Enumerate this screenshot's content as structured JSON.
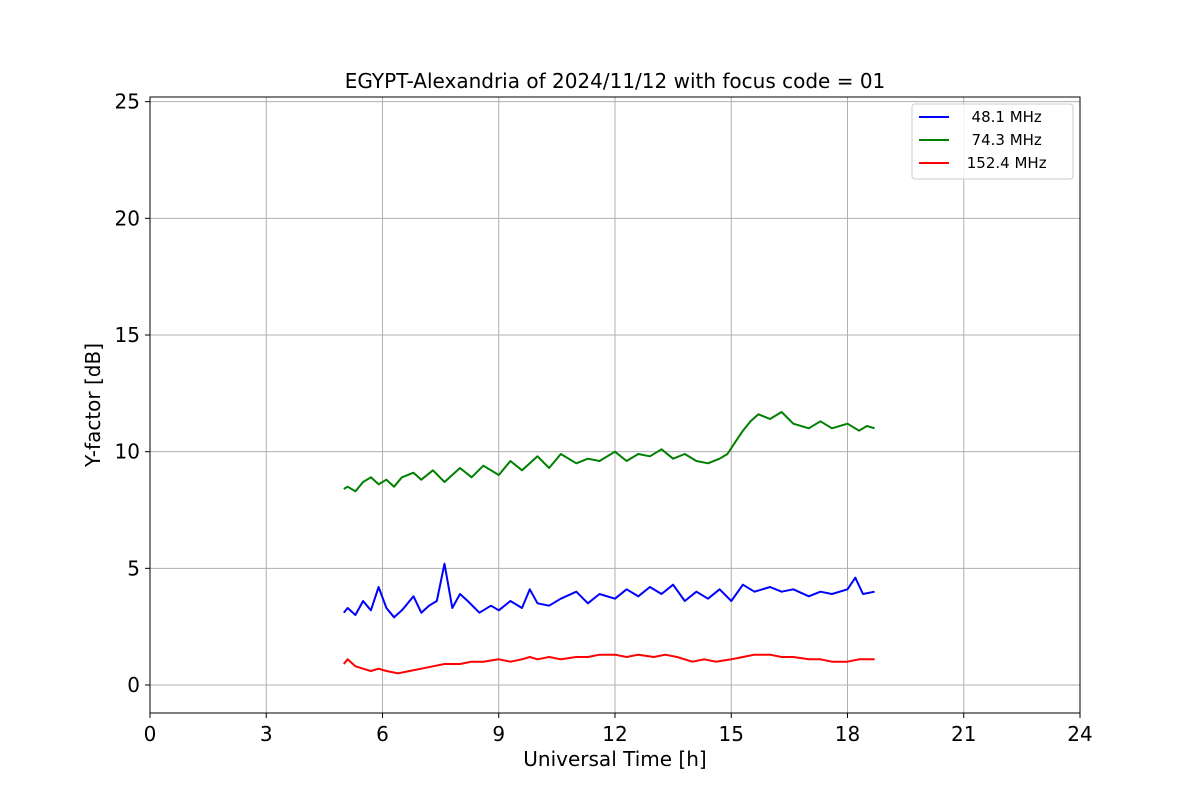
{
  "chart_data": {
    "type": "line",
    "title": "EGYPT-Alexandria of 2024/11/12 with focus code = 01",
    "xlabel": "Universal Time [h]",
    "ylabel": "Y-factor [dB]",
    "xlim": [
      0,
      24
    ],
    "ylim": [
      -1.2,
      25.2
    ],
    "xticks": [
      0,
      3,
      6,
      9,
      12,
      15,
      18,
      21,
      24
    ],
    "yticks": [
      0,
      5,
      10,
      15,
      20,
      25
    ],
    "grid": true,
    "legend_position": "top-right",
    "series": [
      {
        "name": "  48.1 MHz",
        "color": "#0000ff",
        "x": [
          5.0,
          5.1,
          5.3,
          5.5,
          5.7,
          5.9,
          6.1,
          6.3,
          6.5,
          6.8,
          7.0,
          7.2,
          7.4,
          7.6,
          7.8,
          8.0,
          8.2,
          8.5,
          8.8,
          9.0,
          9.3,
          9.6,
          9.8,
          10.0,
          10.3,
          10.6,
          11.0,
          11.3,
          11.6,
          12.0,
          12.3,
          12.6,
          12.9,
          13.2,
          13.5,
          13.8,
          14.1,
          14.4,
          14.7,
          15.0,
          15.3,
          15.6,
          16.0,
          16.3,
          16.6,
          17.0,
          17.3,
          17.6,
          18.0,
          18.2,
          18.4,
          18.7
        ],
        "y": [
          3.1,
          3.3,
          3.0,
          3.6,
          3.2,
          4.2,
          3.3,
          2.9,
          3.2,
          3.8,
          3.1,
          3.4,
          3.6,
          5.2,
          3.3,
          3.9,
          3.6,
          3.1,
          3.4,
          3.2,
          3.6,
          3.3,
          4.1,
          3.5,
          3.4,
          3.7,
          4.0,
          3.5,
          3.9,
          3.7,
          4.1,
          3.8,
          4.2,
          3.9,
          4.3,
          3.6,
          4.0,
          3.7,
          4.1,
          3.6,
          4.3,
          4.0,
          4.2,
          4.0,
          4.1,
          3.8,
          4.0,
          3.9,
          4.1,
          4.6,
          3.9,
          4.0
        ]
      },
      {
        "name": "  74.3 MHz",
        "color": "#008000",
        "x": [
          5.0,
          5.1,
          5.3,
          5.5,
          5.7,
          5.9,
          6.1,
          6.3,
          6.5,
          6.8,
          7.0,
          7.3,
          7.6,
          8.0,
          8.3,
          8.6,
          9.0,
          9.3,
          9.6,
          9.8,
          10.0,
          10.3,
          10.6,
          11.0,
          11.3,
          11.6,
          12.0,
          12.3,
          12.6,
          12.9,
          13.2,
          13.5,
          13.8,
          14.1,
          14.4,
          14.7,
          14.9,
          15.1,
          15.3,
          15.5,
          15.7,
          16.0,
          16.3,
          16.6,
          17.0,
          17.3,
          17.6,
          18.0,
          18.3,
          18.5,
          18.7
        ],
        "y": [
          8.4,
          8.5,
          8.3,
          8.7,
          8.9,
          8.6,
          8.8,
          8.5,
          8.9,
          9.1,
          8.8,
          9.2,
          8.7,
          9.3,
          8.9,
          9.4,
          9.0,
          9.6,
          9.2,
          9.5,
          9.8,
          9.3,
          9.9,
          9.5,
          9.7,
          9.6,
          10.0,
          9.6,
          9.9,
          9.8,
          10.1,
          9.7,
          9.9,
          9.6,
          9.5,
          9.7,
          9.9,
          10.4,
          10.9,
          11.3,
          11.6,
          11.4,
          11.7,
          11.2,
          11.0,
          11.3,
          11.0,
          11.2,
          10.9,
          11.1,
          11.0
        ]
      },
      {
        "name": " 152.4 MHz",
        "color": "#ff0000",
        "x": [
          5.0,
          5.1,
          5.3,
          5.5,
          5.7,
          5.9,
          6.1,
          6.4,
          6.7,
          7.0,
          7.3,
          7.6,
          8.0,
          8.3,
          8.6,
          9.0,
          9.3,
          9.6,
          9.8,
          10.0,
          10.3,
          10.6,
          11.0,
          11.3,
          11.6,
          12.0,
          12.3,
          12.6,
          13.0,
          13.3,
          13.6,
          14.0,
          14.3,
          14.6,
          15.0,
          15.3,
          15.6,
          16.0,
          16.3,
          16.6,
          17.0,
          17.3,
          17.6,
          18.0,
          18.3,
          18.7
        ],
        "y": [
          0.9,
          1.1,
          0.8,
          0.7,
          0.6,
          0.7,
          0.6,
          0.5,
          0.6,
          0.7,
          0.8,
          0.9,
          0.9,
          1.0,
          1.0,
          1.1,
          1.0,
          1.1,
          1.2,
          1.1,
          1.2,
          1.1,
          1.2,
          1.2,
          1.3,
          1.3,
          1.2,
          1.3,
          1.2,
          1.3,
          1.2,
          1.0,
          1.1,
          1.0,
          1.1,
          1.2,
          1.3,
          1.3,
          1.2,
          1.2,
          1.1,
          1.1,
          1.0,
          1.0,
          1.1,
          1.1
        ]
      }
    ]
  }
}
